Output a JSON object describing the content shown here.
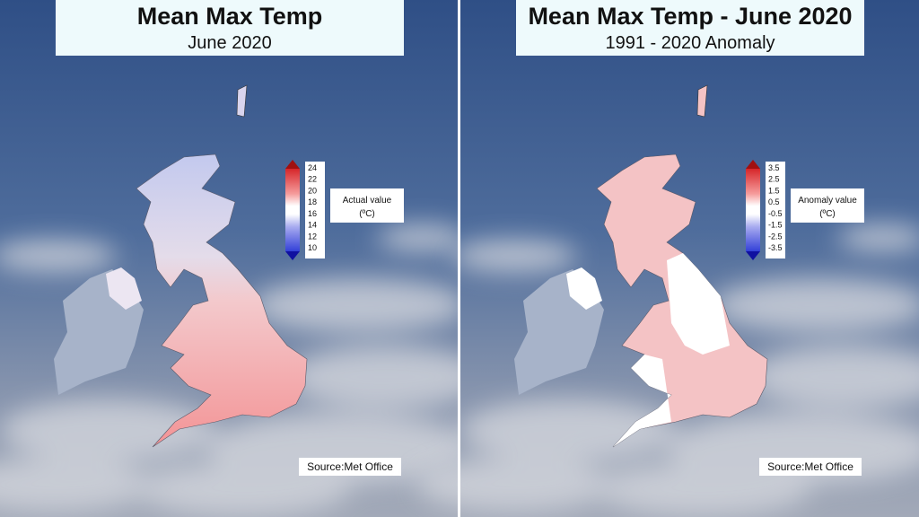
{
  "panels": [
    {
      "title": "Mean Max Temp",
      "subtitle": "June 2020",
      "legend": {
        "label": "Actual value",
        "unit": "(ºC)",
        "ticks": [
          24,
          22,
          20,
          18,
          16,
          14,
          12,
          10
        ]
      },
      "source": "Source:Met Office"
    },
    {
      "title": "Mean Max Temp - June 2020",
      "subtitle": "1991 - 2020 Anomaly",
      "legend": {
        "label": "Anomaly value",
        "unit": "(ºC)",
        "ticks": [
          3.5,
          2.5,
          1.5,
          0.5,
          -0.5,
          -1.5,
          -2.5,
          -3.5
        ]
      },
      "source": "Source:Met Office"
    }
  ]
}
